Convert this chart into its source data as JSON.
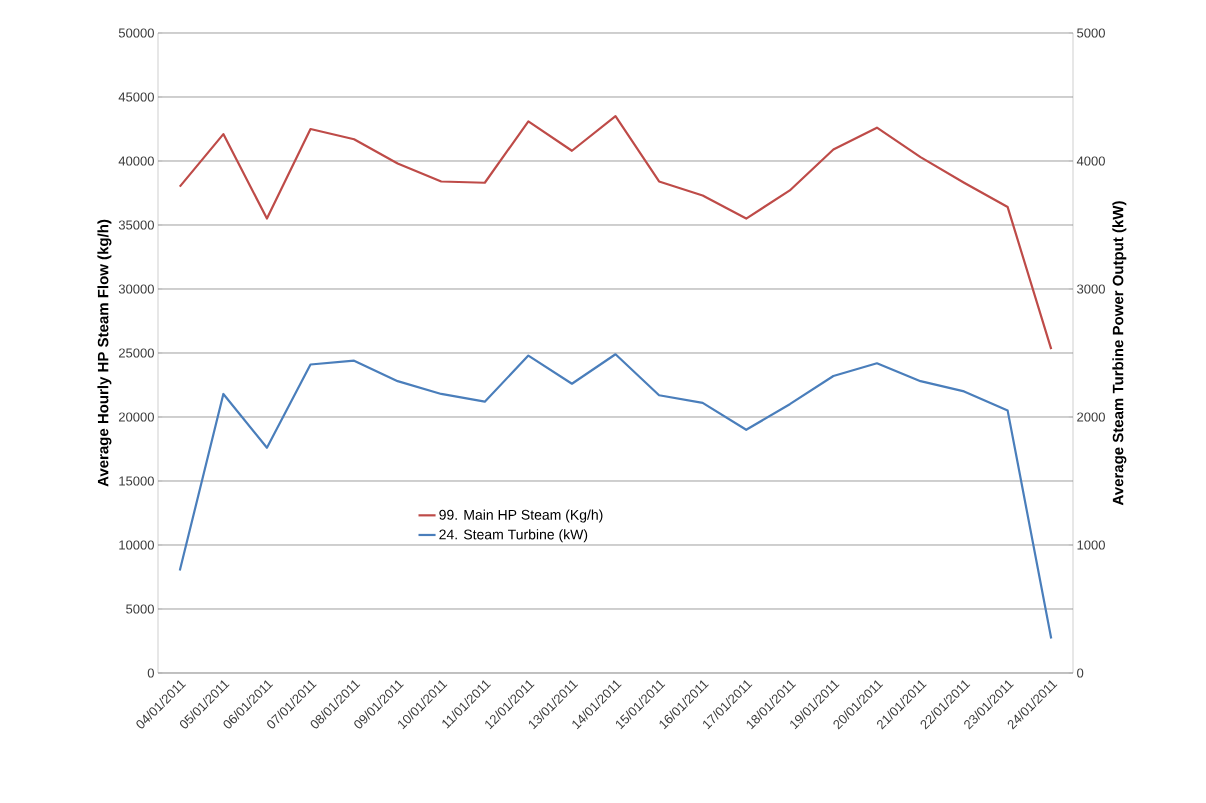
{
  "chart_data": {
    "type": "line",
    "ylabel": "Average Hourly HP Steam Flow (kg/h)",
    "y2label": "Average Steam Turbine Power Output (kW)",
    "categories": [
      "04/01/2011",
      "05/01/2011",
      "06/01/2011",
      "07/01/2011",
      "08/01/2011",
      "09/01/2011",
      "10/01/2011",
      "11/01/2011",
      "12/01/2011",
      "13/01/2011",
      "14/01/2011",
      "15/01/2011",
      "16/01/2011",
      "17/01/2011",
      "18/01/2011",
      "19/01/2011",
      "20/01/2011",
      "21/01/2011",
      "22/01/2011",
      "23/01/2011",
      "24/01/2011"
    ],
    "series": [
      {
        "name": "99. Main HP Steam (Kg/h)",
        "color": "#be4b48",
        "values": [
          38000,
          42100,
          35500,
          42500,
          41700,
          39800,
          38400,
          38300,
          43100,
          40800,
          43500,
          38400,
          37300,
          35500,
          37700,
          40900,
          42600,
          40300,
          38300,
          36400,
          25300
        ]
      },
      {
        "name": "24. Steam Turbine (kW)",
        "color": "#4a7ebb",
        "axis": "y2",
        "values": [
          800,
          2180,
          1760,
          2410,
          2440,
          2280,
          2180,
          2120,
          2480,
          2260,
          2490,
          2170,
          2110,
          1900,
          2100,
          2320,
          2420,
          2280,
          2200,
          2050,
          270
        ]
      }
    ],
    "ylim": [
      0,
      50000
    ],
    "yticks": [
      0,
      5000,
      10000,
      15000,
      20000,
      25000,
      30000,
      35000,
      40000,
      45000,
      50000
    ],
    "y2lim": [
      0,
      5000
    ],
    "y2ticks": [
      0,
      1000,
      2000,
      3000,
      4000,
      5000
    ],
    "grid": "y",
    "legend": "bottom left",
    "marker": "none",
    "line_style": "solid"
  }
}
